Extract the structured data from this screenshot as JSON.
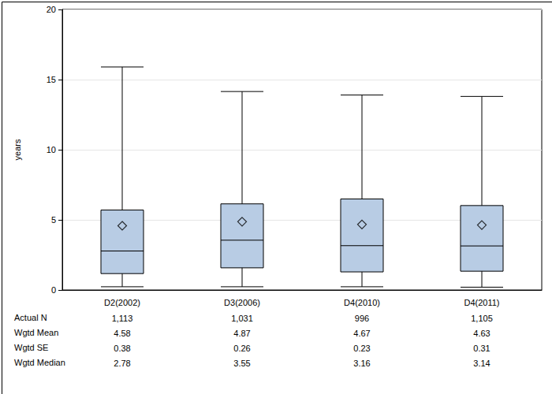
{
  "chart_data": {
    "type": "boxplot",
    "y_label": "years",
    "categories": [
      "D2(2002)",
      "D3(2006)",
      "D4(2010)",
      "D4(2011)"
    ],
    "whisker_low": [
      0.23,
      0.23,
      0.23,
      0.2
    ],
    "q1": [
      1.17,
      1.58,
      1.29,
      1.34
    ],
    "q3": [
      5.7,
      6.14,
      6.49,
      6.02
    ],
    "whisker_high": [
      15.9,
      14.15,
      13.9,
      13.8
    ],
    "n": {
      "label": "Actual N",
      "values": [
        1113,
        1031,
        996,
        1105
      ],
      "value_labels": [
        "1,113",
        "1,031",
        "996",
        "1,105"
      ]
    },
    "mean": {
      "label": "Wgtd Mean",
      "values": [
        4.58,
        4.87,
        4.67,
        4.63
      ]
    },
    "se": {
      "label": "Wgtd SE",
      "values": [
        0.38,
        0.26,
        0.23,
        0.31
      ]
    },
    "median": {
      "label": "Wgtd Median",
      "values": [
        2.78,
        3.55,
        3.16,
        3.14
      ]
    },
    "color": "#b8cce4",
    "marker": "diamond",
    "ylim": [
      0,
      20
    ],
    "yticks": [
      0,
      5,
      10,
      15,
      20
    ],
    "grid": true
  }
}
